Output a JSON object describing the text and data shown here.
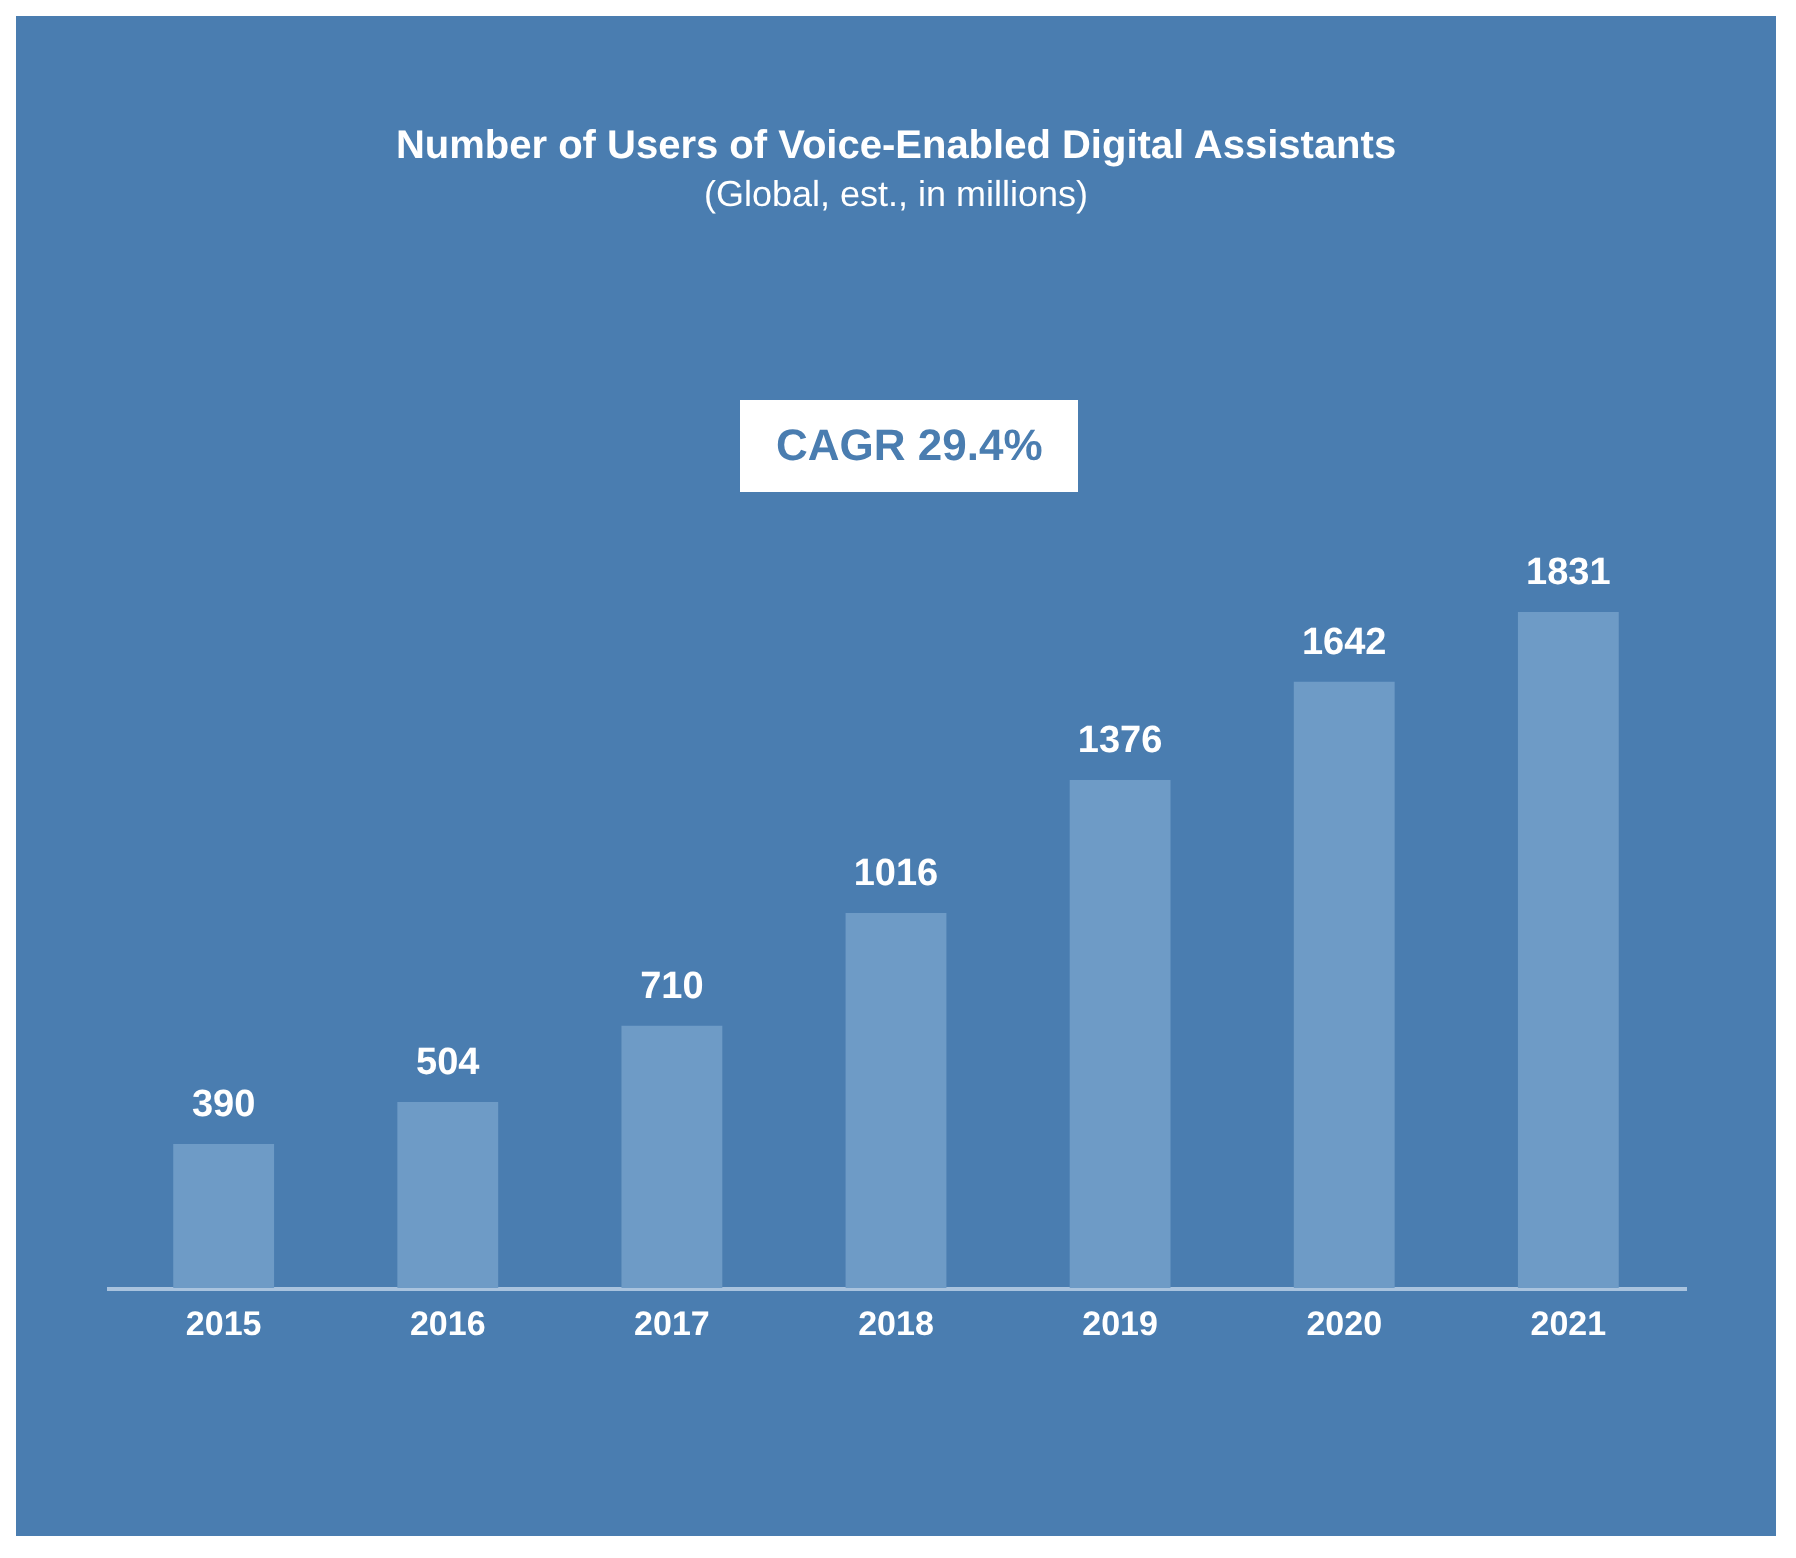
{
  "chart_data": {
    "type": "bar",
    "title": "Number of Users of Voice-Enabled Digital Assistants",
    "subtitle": "(Global, est., in millions)",
    "categories": [
      "2015",
      "2016",
      "2017",
      "2018",
      "2019",
      "2020",
      "2021"
    ],
    "values": [
      390,
      504,
      710,
      1016,
      1376,
      1642,
      1831
    ],
    "color": "#6e9bc6",
    "data_labels": true,
    "annotations": [
      "CAGR 29.4%"
    ]
  }
}
